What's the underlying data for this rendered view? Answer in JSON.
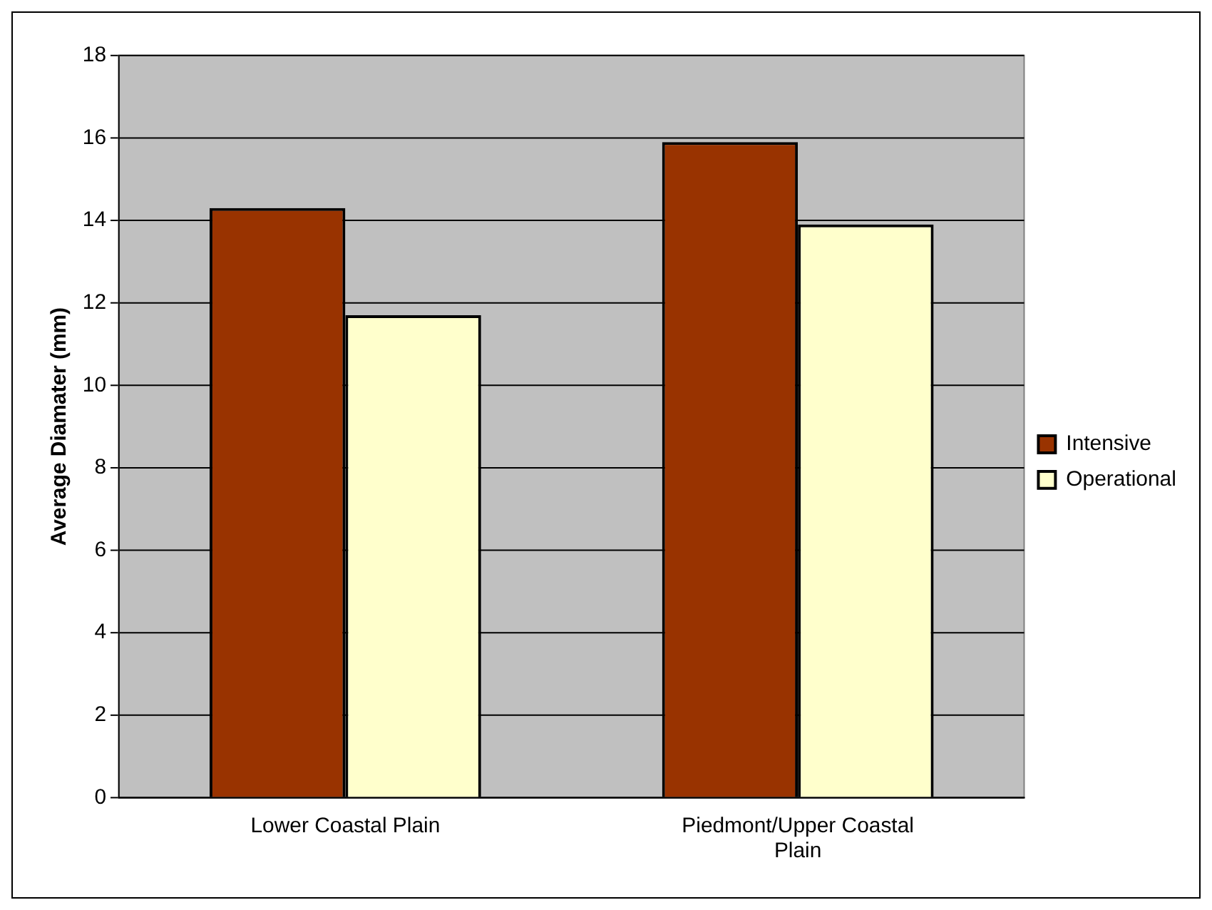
{
  "chart_data": {
    "type": "bar",
    "ylabel": "Average Diamater (mm)",
    "categories": [
      "Lower Coastal Plain",
      "Piedmont/Upper Coastal Plain"
    ],
    "series": [
      {
        "name": "Intensive",
        "color": "#993300",
        "values": [
          14.3,
          15.9
        ]
      },
      {
        "name": "Operational",
        "color": "#ffffcc",
        "values": [
          11.7,
          13.9
        ]
      }
    ],
    "ylim": [
      0,
      18
    ],
    "yticks": [
      0,
      2,
      4,
      6,
      8,
      10,
      12,
      14,
      16,
      18
    ],
    "grid": "y",
    "legend": "right"
  }
}
